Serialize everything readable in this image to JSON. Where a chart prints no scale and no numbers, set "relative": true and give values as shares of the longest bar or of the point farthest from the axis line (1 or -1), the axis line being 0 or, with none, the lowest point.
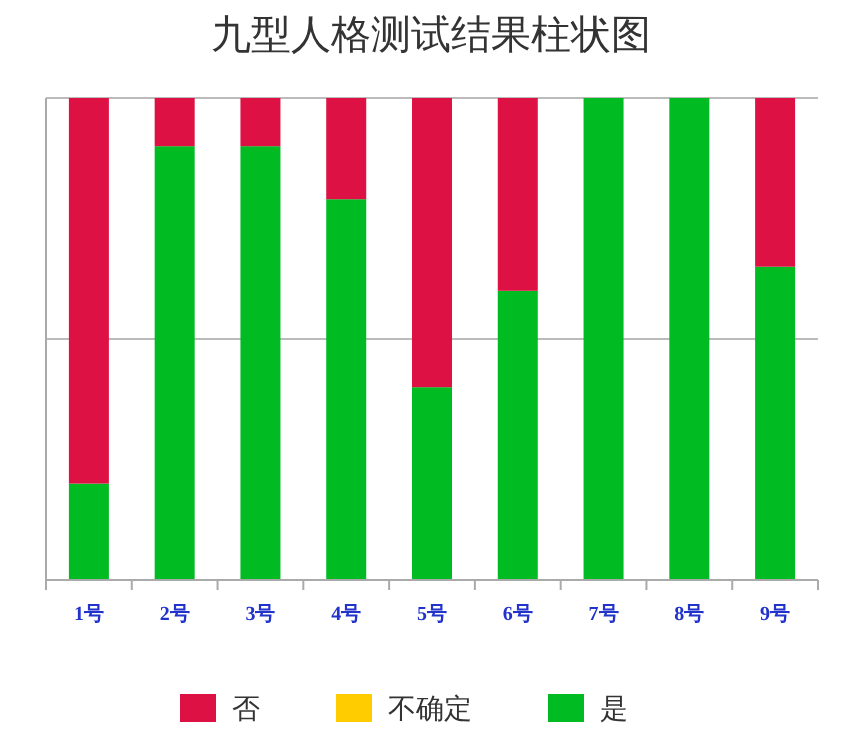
{
  "chart_data": {
    "type": "bar",
    "title": "九型人格测试结果柱状图",
    "relative": true,
    "stacked": true,
    "legend": "bottom",
    "ref_lines": [
      {
        "axis": "y",
        "value": 0.5,
        "color": "#bbbbbb"
      }
    ],
    "categories": [
      "1号",
      "2号",
      "3号",
      "4号",
      "5号",
      "6号",
      "7号",
      "8号",
      "9号"
    ],
    "series": [
      {
        "name": "是",
        "color": "#00bb22",
        "values": [
          0.2,
          0.9,
          0.9,
          0.79,
          0.4,
          0.6,
          1,
          1,
          0.65
        ]
      },
      {
        "name": "不确定",
        "color": "#ffcc00",
        "values": [
          0,
          0,
          0,
          0,
          0,
          0,
          0,
          0,
          0
        ]
      },
      {
        "name": "否",
        "color": "#dd1144",
        "values": [
          0.8,
          0.1,
          0.1,
          0.21,
          0.6,
          0.4,
          0,
          0,
          0.35
        ]
      }
    ]
  }
}
